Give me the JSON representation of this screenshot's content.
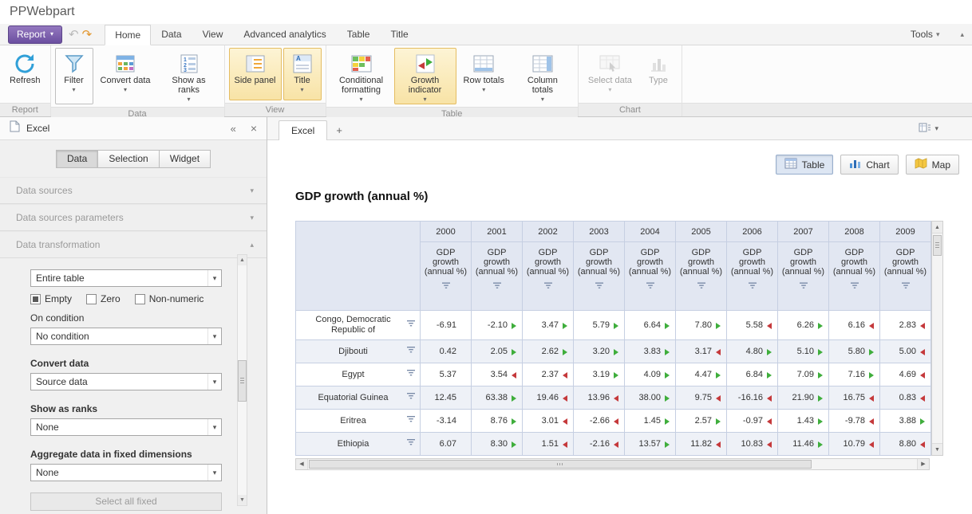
{
  "page_title": "PPWebpart",
  "colors": {
    "growth_up": "#3fae3c",
    "growth_down": "#c5393b",
    "ribbon_highlight": "#f8e3a6",
    "report_button": "#6b4fa0",
    "grid_header_bg": "#e2e7f2"
  },
  "ribbon": {
    "report_button": "Report",
    "tabs": [
      {
        "label": "Home",
        "active": true
      },
      {
        "label": "Data"
      },
      {
        "label": "View"
      },
      {
        "label": "Advanced analytics"
      },
      {
        "label": "Table"
      },
      {
        "label": "Title"
      }
    ],
    "tools_label": "Tools",
    "groups": [
      {
        "label": "Report",
        "buttons": [
          {
            "label": "Refresh",
            "icon": "refresh-icon"
          }
        ]
      },
      {
        "label": "Data",
        "buttons": [
          {
            "label": "Filter",
            "icon": "filter-icon",
            "dropdown": true,
            "state": "outlined"
          },
          {
            "label": "Convert data",
            "icon": "convert-data-icon",
            "dropdown": true
          },
          {
            "label": "Show as ranks",
            "icon": "show-as-ranks-icon",
            "dropdown": true
          }
        ]
      },
      {
        "label": "View",
        "buttons": [
          {
            "label": "Side panel",
            "icon": "side-panel-icon",
            "state": "active"
          },
          {
            "label": "Title",
            "icon": "title-icon",
            "dropdown": true,
            "state": "active"
          }
        ]
      },
      {
        "label": "Table",
        "buttons": [
          {
            "label": "Conditional formatting",
            "icon": "conditional-formatting-icon",
            "dropdown": true
          },
          {
            "label": "Growth indicator",
            "icon": "growth-indicator-icon",
            "dropdown": true,
            "state": "active"
          },
          {
            "label": "Row totals",
            "icon": "row-totals-icon",
            "dropdown": true
          },
          {
            "label": "Column totals",
            "icon": "column-totals-icon",
            "dropdown": true
          }
        ]
      },
      {
        "label": "Chart",
        "buttons": [
          {
            "label": "Select data",
            "icon": "select-data-icon",
            "dropdown": true,
            "state": "disabled"
          },
          {
            "label": "Type",
            "icon": "chart-type-icon",
            "state": "disabled"
          }
        ]
      }
    ]
  },
  "sidebar": {
    "header": {
      "title": "Excel"
    },
    "tabs": [
      {
        "label": "Data",
        "active": true
      },
      {
        "label": "Selection"
      },
      {
        "label": "Widget"
      }
    ],
    "sections": [
      {
        "label": "Data sources",
        "expanded": false
      },
      {
        "label": "Data sources parameters",
        "expanded": false
      },
      {
        "label": "Data transformation",
        "expanded": true
      }
    ],
    "transformation": {
      "scope_value": "Entire table",
      "checkboxes": [
        {
          "label": "Empty",
          "checked": true
        },
        {
          "label": "Zero",
          "checked": false
        },
        {
          "label": "Non-numeric",
          "checked": false
        }
      ],
      "on_condition_label": "On condition",
      "on_condition_value": "No condition",
      "convert_data_label": "Convert data",
      "convert_data_value": "Source data",
      "show_as_ranks_label": "Show as ranks",
      "show_as_ranks_value": "None",
      "aggregate_label": "Aggregate data in fixed dimensions",
      "aggregate_value": "None",
      "select_all_fixed_label": "Select all fixed"
    }
  },
  "workspace": {
    "tabs": [
      {
        "label": "Excel",
        "active": true
      }
    ],
    "add_tab_label": "+",
    "view_toggles": [
      {
        "label": "Table",
        "active": true
      },
      {
        "label": "Chart"
      },
      {
        "label": "Map"
      }
    ],
    "title": "GDP growth (annual %)",
    "table": {
      "measure_label": "GDP growth (annual %)",
      "columns": [
        "2000",
        "2001",
        "2002",
        "2003",
        "2004",
        "2005",
        "2006",
        "2007",
        "2008",
        "2009"
      ],
      "rows": [
        {
          "name": "Congo, Democratic Republic of",
          "values": [
            "-6.91",
            "-2.10",
            "3.47",
            "5.79",
            "6.64",
            "7.80",
            "5.58",
            "6.26",
            "6.16",
            "2.83"
          ],
          "indicators": [
            "none",
            "up",
            "up",
            "up",
            "up",
            "up",
            "down",
            "up",
            "down",
            "down"
          ]
        },
        {
          "name": "Djibouti",
          "values": [
            "0.42",
            "2.05",
            "2.62",
            "3.20",
            "3.83",
            "3.17",
            "4.80",
            "5.10",
            "5.80",
            "5.00"
          ],
          "indicators": [
            "none",
            "up",
            "up",
            "up",
            "up",
            "down",
            "up",
            "up",
            "up",
            "down"
          ]
        },
        {
          "name": "Egypt",
          "values": [
            "5.37",
            "3.54",
            "2.37",
            "3.19",
            "4.09",
            "4.47",
            "6.84",
            "7.09",
            "7.16",
            "4.69"
          ],
          "indicators": [
            "none",
            "down",
            "down",
            "up",
            "up",
            "up",
            "up",
            "up",
            "up",
            "down"
          ]
        },
        {
          "name": "Equatorial Guinea",
          "values": [
            "12.45",
            "63.38",
            "19.46",
            "13.96",
            "38.00",
            "9.75",
            "-16.16",
            "21.90",
            "16.75",
            "0.83"
          ],
          "indicators": [
            "none",
            "up",
            "down",
            "down",
            "up",
            "down",
            "down",
            "up",
            "down",
            "down"
          ]
        },
        {
          "name": "Eritrea",
          "values": [
            "-3.14",
            "8.76",
            "3.01",
            "-2.66",
            "1.45",
            "2.57",
            "-0.97",
            "1.43",
            "-9.78",
            "3.88"
          ],
          "indicators": [
            "none",
            "up",
            "down",
            "down",
            "up",
            "up",
            "down",
            "up",
            "down",
            "up"
          ]
        },
        {
          "name": "Ethiopia",
          "values": [
            "6.07",
            "8.30",
            "1.51",
            "-2.16",
            "13.57",
            "11.82",
            "10.83",
            "11.46",
            "10.79",
            "8.80"
          ],
          "indicators": [
            "none",
            "up",
            "down",
            "down",
            "up",
            "down",
            "down",
            "up",
            "down",
            "down"
          ]
        }
      ]
    }
  }
}
